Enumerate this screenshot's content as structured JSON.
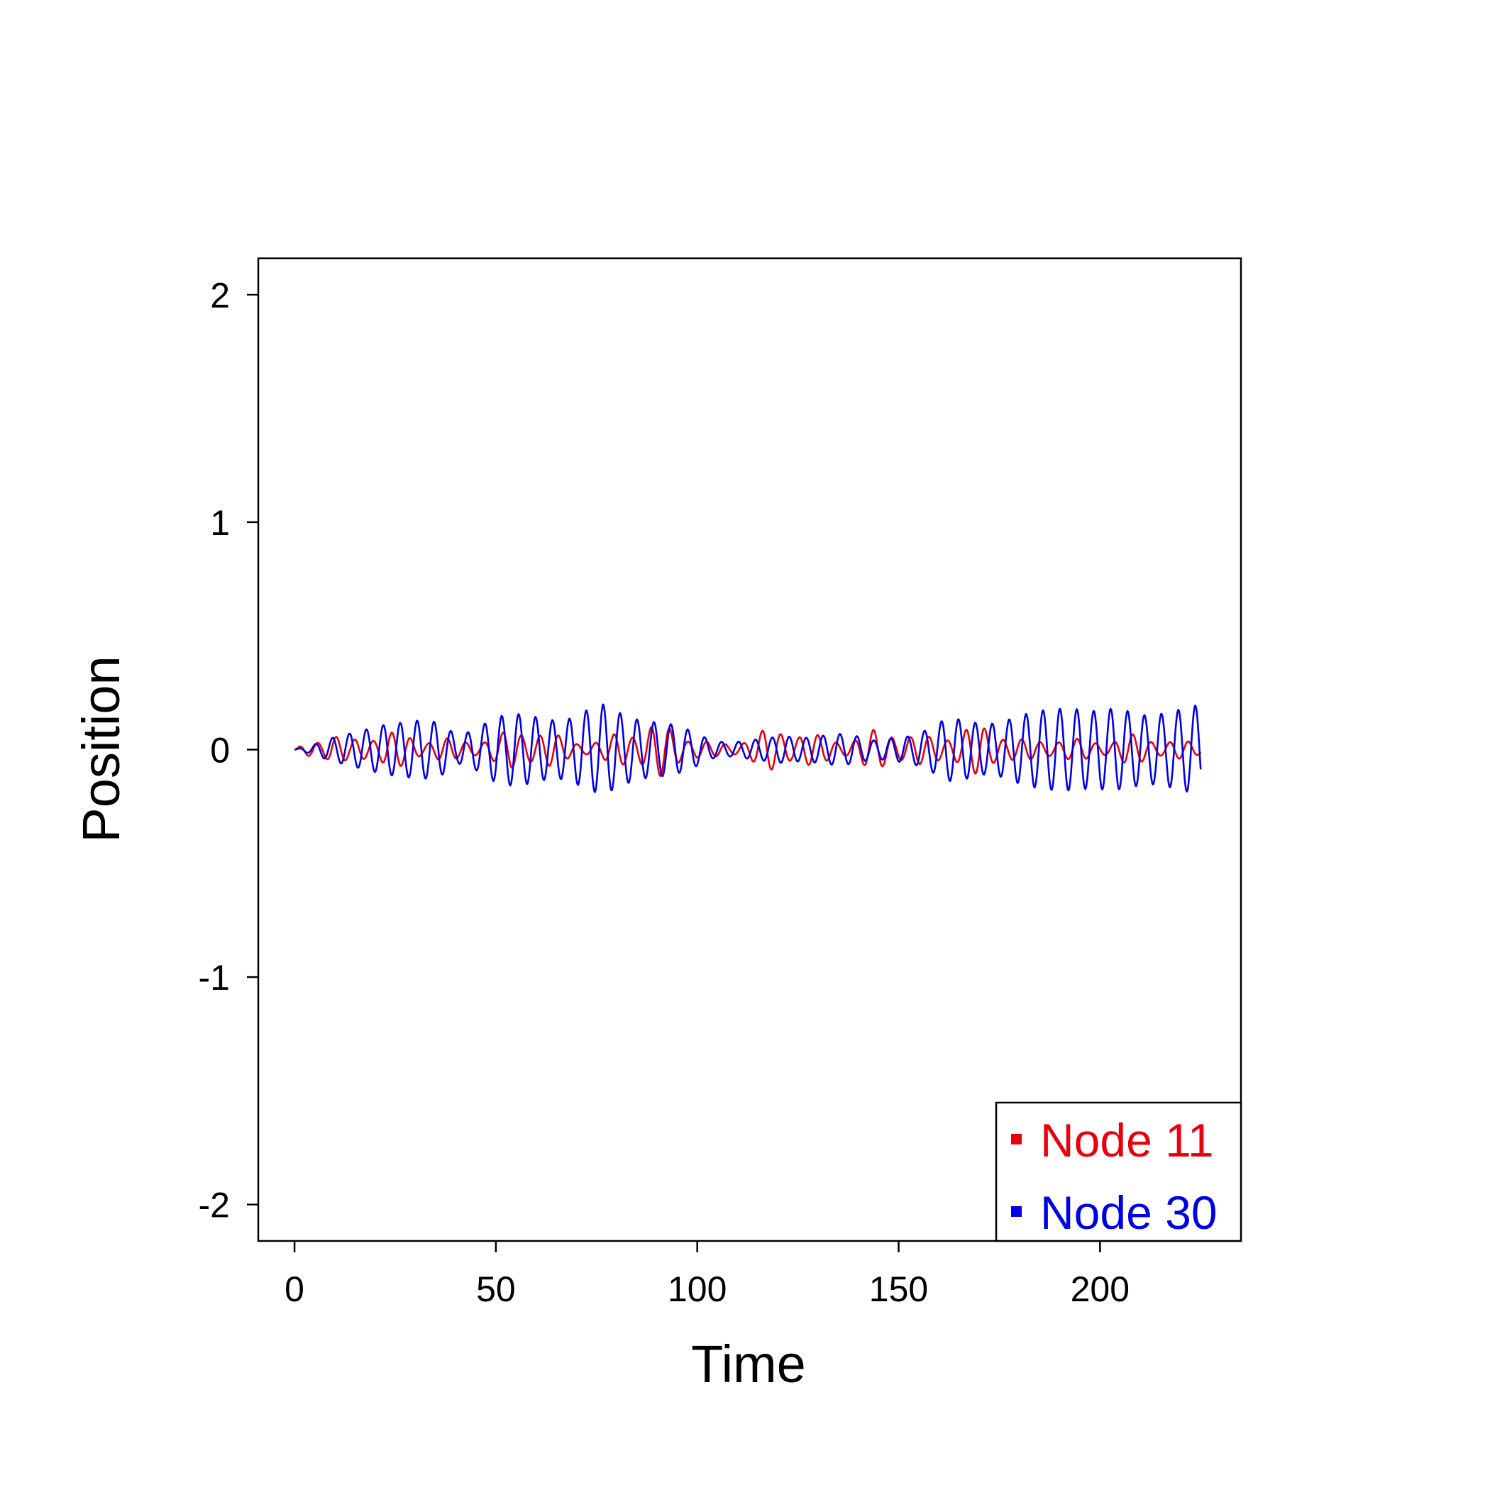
{
  "chart_data": {
    "type": "line",
    "title": "",
    "xlabel": "Time",
    "ylabel": "Position",
    "xlim": [
      -9,
      235
    ],
    "ylim": [
      -2.16,
      2.16
    ],
    "x_ticks": [
      0,
      50,
      100,
      150,
      200
    ],
    "y_ticks": [
      -2,
      -1,
      0,
      1,
      2
    ],
    "grid": false,
    "legend_position": "bottom-right",
    "series": [
      {
        "name": "Node 11",
        "color": "#e8000b",
        "x": [
          0,
          4.5,
          9,
          13.5,
          18,
          22.5,
          27,
          31.5,
          36,
          40.5,
          45,
          49.5,
          54,
          58.5,
          63,
          67.5,
          72,
          76.5,
          81,
          85.5,
          90,
          94.5,
          99,
          103.5,
          108,
          112.5,
          117,
          121.5,
          126,
          130.5,
          135,
          139.5,
          144,
          148.5,
          153,
          157.5,
          162,
          166.5,
          171,
          175.5,
          180,
          184.5,
          189,
          193.5,
          198,
          202.5,
          207,
          211.5,
          216,
          220.5,
          225
        ],
        "y": [
          0,
          0.05,
          0.08,
          0.04,
          0.07,
          0.09,
          0.07,
          0.05,
          0.06,
          0.04,
          0.05,
          0.06,
          0.09,
          0.11,
          0.08,
          0.05,
          0.04,
          0.04,
          0.09,
          0.11,
          0.12,
          0.1,
          0.06,
          0.03,
          0.03,
          0.06,
          0.09,
          0.1,
          0.09,
          0.06,
          0.05,
          0.06,
          0.09,
          0.1,
          0.07,
          0.06,
          0.08,
          0.1,
          0.11,
          0.09,
          0.05,
          0.04,
          0.06,
          0.05,
          0.04,
          0.05,
          0.07,
          0.06,
          0.05,
          0.04,
          0.03
        ],
        "cycle_period": 4.6
      },
      {
        "name": "Node 30",
        "color": "#0000e6",
        "x": [
          0,
          4.5,
          9,
          13.5,
          18,
          22.5,
          27,
          31.5,
          36,
          40.5,
          45,
          49.5,
          54,
          58.5,
          63,
          67.5,
          72,
          76.5,
          81,
          85.5,
          90,
          94.5,
          99,
          103.5,
          108,
          112.5,
          117,
          121.5,
          126,
          130.5,
          135,
          139.5,
          144,
          148.5,
          153,
          157.5,
          162,
          166.5,
          171,
          175.5,
          180,
          184.5,
          189,
          193.5,
          198,
          202.5,
          207,
          211.5,
          216,
          220.5,
          225
        ],
        "y": [
          0,
          0.02,
          0.05,
          0.07,
          0.09,
          0.11,
          0.12,
          0.13,
          0.12,
          0.06,
          0.09,
          0.14,
          0.16,
          0.15,
          0.13,
          0.13,
          0.17,
          0.2,
          0.16,
          0.13,
          0.12,
          0.11,
          0.08,
          0.04,
          0.03,
          0.04,
          0.05,
          0.06,
          0.05,
          0.06,
          0.07,
          0.06,
          0.04,
          0.05,
          0.06,
          0.09,
          0.14,
          0.13,
          0.11,
          0.12,
          0.15,
          0.17,
          0.18,
          0.18,
          0.17,
          0.18,
          0.17,
          0.15,
          0.16,
          0.18,
          0.2
        ],
        "cycle_period": 4.2
      }
    ]
  }
}
